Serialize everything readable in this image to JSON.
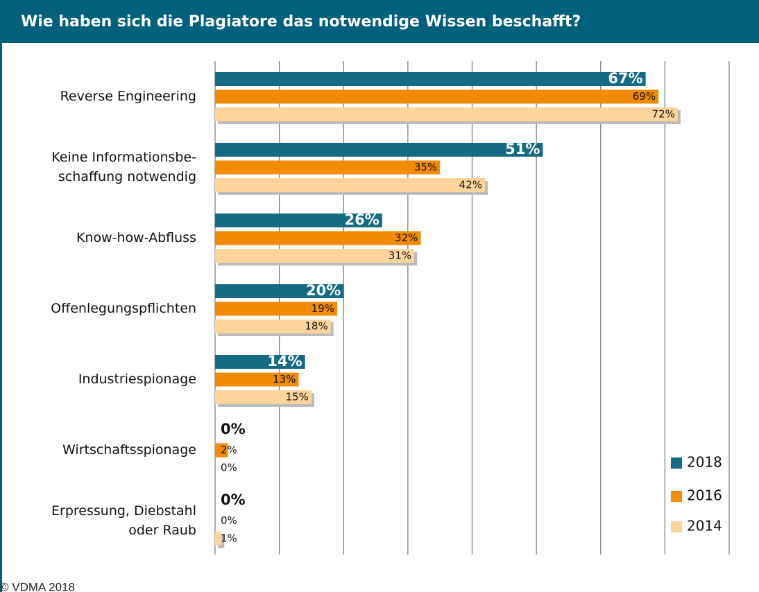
{
  "chart_data": {
    "type": "barh",
    "title": "Wie haben sich die Plagiatore das notwendige Wissen beschafft?",
    "categories": [
      [
        "Reverse Engineering"
      ],
      [
        "Keine Informationsbe-",
        "schaffung notwendig"
      ],
      [
        "Know-how-Abfluss"
      ],
      [
        "Offenlegungspflichten"
      ],
      [
        "Industriespionage"
      ],
      [
        "Wirtschaftsspionage"
      ],
      [
        "Erpressung, Diebstahl",
        "oder Raub"
      ]
    ],
    "series": [
      {
        "name": "2018",
        "color": "#156a84",
        "values": [
          67,
          51,
          26,
          20,
          14,
          0,
          0
        ],
        "value_labels": [
          "67%",
          "51%",
          "26%",
          "20%",
          "14%",
          "0%",
          "0%"
        ]
      },
      {
        "name": "2016",
        "color": "#f18b00",
        "values": [
          69,
          35,
          32,
          19,
          13,
          2,
          0
        ],
        "value_labels": [
          "69%",
          "35%",
          "32%",
          "19%",
          "13%",
          "2%",
          "0%"
        ]
      },
      {
        "name": "2014",
        "color": "#fdd49b",
        "values": [
          72,
          42,
          31,
          18,
          15,
          0,
          1
        ],
        "value_labels": [
          "72%",
          "42%",
          "31%",
          "18%",
          "15%",
          "0%",
          "1%"
        ]
      }
    ],
    "xlim": [
      0,
      80
    ],
    "xticks": [
      0,
      10,
      20,
      30,
      40,
      50,
      60,
      70,
      80
    ],
    "grid": true,
    "legend": "lower right",
    "footer": "© VDMA 2018"
  }
}
